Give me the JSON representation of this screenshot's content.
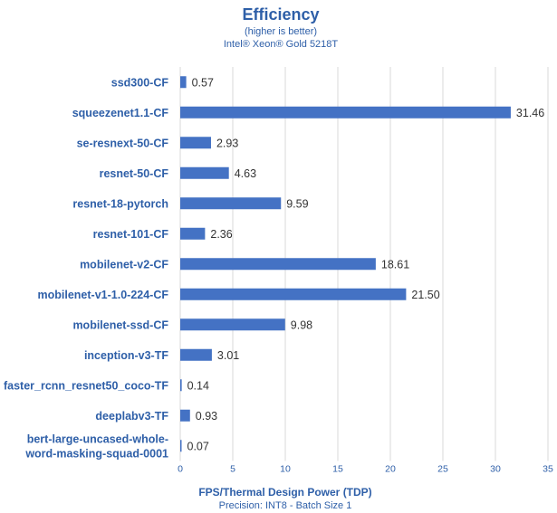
{
  "chart_data": {
    "type": "bar",
    "orientation": "horizontal",
    "title": "Efficiency",
    "subtitle_1": "(higher is better)",
    "subtitle_2": "Intel® Xeon® Gold 5218T",
    "xlabel": "FPS/Thermal Design Power (TDP)",
    "xlabel_sub": "Precision: INT8 - Batch Size 1",
    "xlim": [
      0,
      35
    ],
    "xticks": [
      0,
      5,
      10,
      15,
      20,
      25,
      30,
      35
    ],
    "grid": "vertical",
    "bar_color": "#4472c4",
    "text_color": "#2e5fa8",
    "categories": [
      [
        "ssd300-CF"
      ],
      [
        "squeezenet1.1-CF"
      ],
      [
        "se-resnext-50-CF"
      ],
      [
        "resnet-50-CF"
      ],
      [
        "resnet-18-pytorch"
      ],
      [
        "resnet-101-CF"
      ],
      [
        "mobilenet-v2-CF"
      ],
      [
        "mobilenet-v1-1.0-224-CF"
      ],
      [
        "mobilenet-ssd-CF"
      ],
      [
        "inception-v3-TF"
      ],
      [
        "faster_rcnn_resnet50_coco-TF"
      ],
      [
        "deeplabv3-TF"
      ],
      [
        "bert-large-uncased-whole-",
        "word-masking-squad-0001"
      ]
    ],
    "values": [
      0.57,
      31.46,
      2.93,
      4.63,
      9.59,
      2.36,
      18.61,
      21.5,
      9.98,
      3.01,
      0.14,
      0.93,
      0.07
    ],
    "value_labels": [
      "0.57",
      "31.46",
      "2.93",
      "4.63",
      "9.59",
      "2.36",
      "18.61",
      "21.50",
      "9.98",
      "3.01",
      "0.14",
      "0.93",
      "0.07"
    ]
  }
}
